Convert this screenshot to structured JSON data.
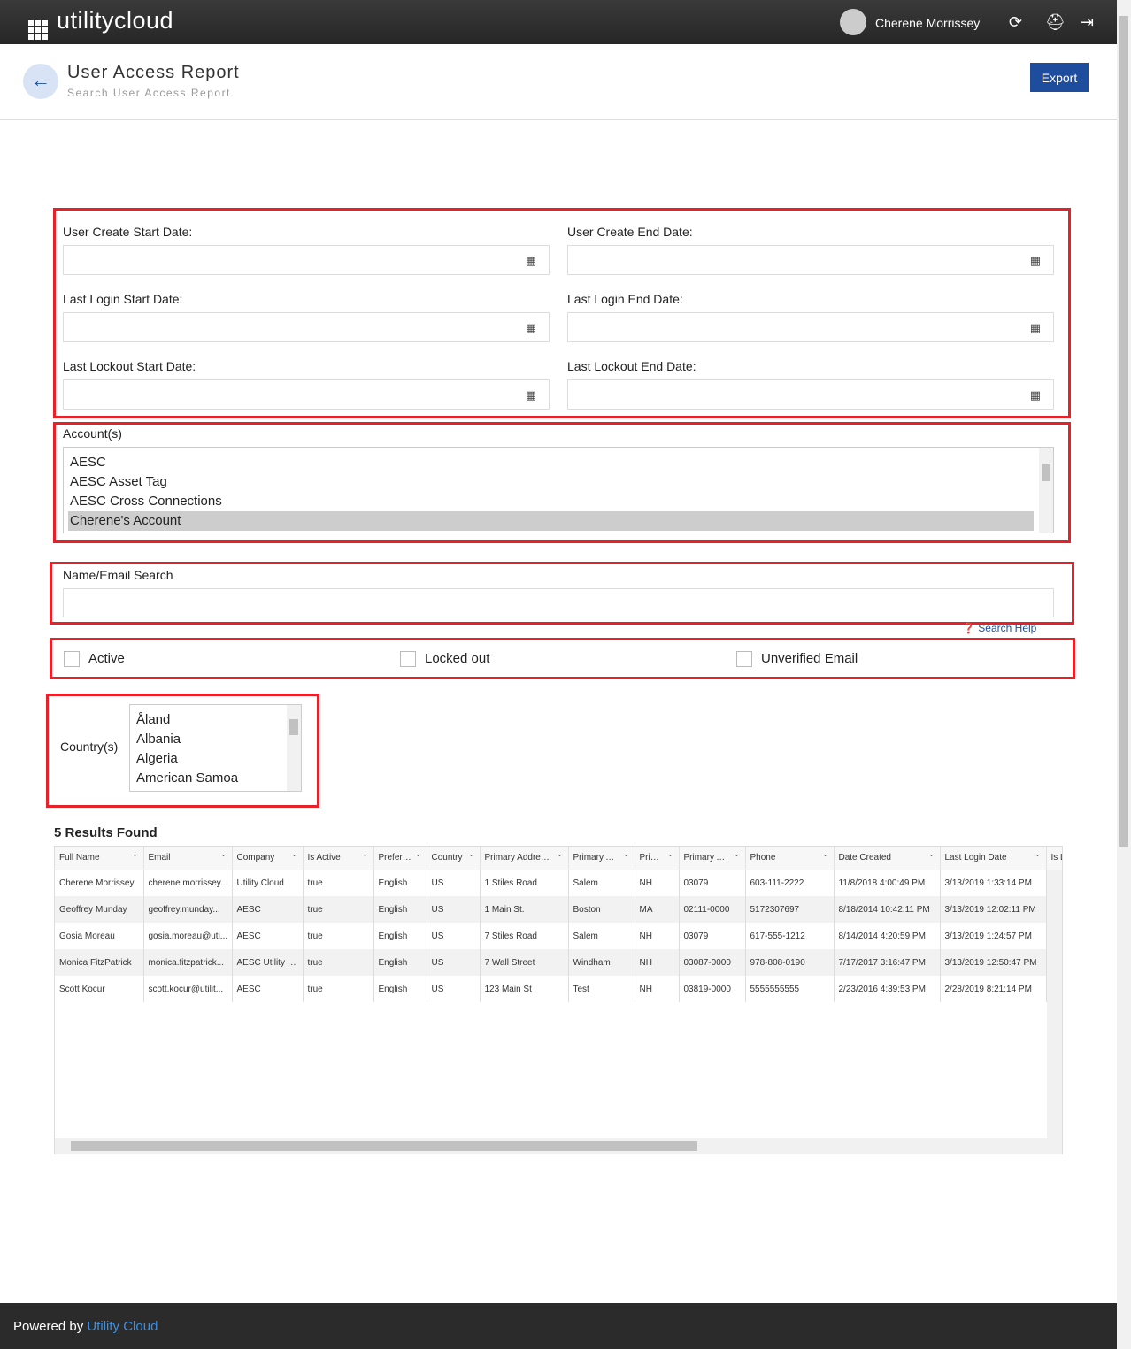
{
  "app": {
    "logo": "utilitycloud",
    "user": "Cherene Morrissey",
    "icons": [
      "refresh-icon",
      "help-lifebuoy-icon",
      "logout-icon"
    ]
  },
  "header": {
    "title": "User Access Report",
    "subtitle": "Search User Access Report",
    "export": "Export"
  },
  "filters": {
    "dates": [
      {
        "label": "User Create Start Date:",
        "value": ""
      },
      {
        "label": "User Create End Date:",
        "value": ""
      },
      {
        "label": "Last Login Start Date:",
        "value": ""
      },
      {
        "label": "Last Login End Date:",
        "value": ""
      },
      {
        "label": "Last Lockout Start Date:",
        "value": ""
      },
      {
        "label": "Last Lockout End Date:",
        "value": ""
      }
    ],
    "accounts_label": "Account(s)",
    "accounts": [
      "AESC",
      "AESC Asset Tag",
      "AESC Cross Connections",
      "Cherene's Account"
    ],
    "accounts_selected": "Cherene's Account",
    "search_label": "Name/Email Search",
    "search_value": "",
    "search_help": "Search Help",
    "checkboxes": [
      {
        "label": "Active",
        "checked": false
      },
      {
        "label": "Locked out",
        "checked": false
      },
      {
        "label": "Unverified Email",
        "checked": false
      }
    ],
    "countries_label": "Country(s)",
    "countries": [
      "Åland",
      "Albania",
      "Algeria",
      "American Samoa"
    ]
  },
  "results": {
    "count_text": "5 Results Found",
    "columns": [
      "Full Name",
      "Email",
      "Company",
      "Is Active",
      "Preferred...",
      "Country",
      "Primary Address 1",
      "Primary Add...",
      "Primar...",
      "Primary Add...",
      "Phone",
      "Date Created",
      "Last Login Date",
      "Is L"
    ],
    "rows": [
      [
        "Cherene Morrissey",
        "cherene.morrissey...",
        "Utility Cloud",
        "true",
        "English",
        "US",
        "1 Stiles Road",
        "Salem",
        "NH",
        "03079",
        "603-111-2222",
        "11/8/2018 4:00:49 PM",
        "3/13/2019 1:33:14 PM",
        ""
      ],
      [
        "Geoffrey Munday",
        "geoffrey.munday...",
        "AESC",
        "true",
        "English",
        "US",
        "1 Main St.",
        "Boston",
        "MA",
        "02111-0000",
        "5172307697",
        "8/18/2014 10:42:11 PM",
        "3/13/2019 12:02:11 PM",
        ""
      ],
      [
        "Gosia Moreau",
        "gosia.moreau@uti...",
        "AESC",
        "true",
        "English",
        "US",
        "7 Stiles Road",
        "Salem",
        "NH",
        "03079",
        "617-555-1212",
        "8/14/2014 4:20:59 PM",
        "3/13/2019 1:24:57 PM",
        ""
      ],
      [
        "Monica FitzPatrick",
        "monica.fitzpatrick...",
        "AESC Utility C...",
        "true",
        "English",
        "US",
        "7 Wall Street",
        "Windham",
        "NH",
        "03087-0000",
        "978-808-0190",
        "7/17/2017 3:16:47 PM",
        "3/13/2019 12:50:47 PM",
        ""
      ],
      [
        "Scott Kocur",
        "scott.kocur@utilit...",
        "AESC",
        "true",
        "English",
        "US",
        "123 Main St",
        "Test",
        "NH",
        "03819-0000",
        "5555555555",
        "2/23/2016 4:39:53 PM",
        "2/28/2019 8:21:14 PM",
        ""
      ]
    ]
  },
  "footer": {
    "prefix": "Powered by",
    "link": "Utility Cloud"
  }
}
